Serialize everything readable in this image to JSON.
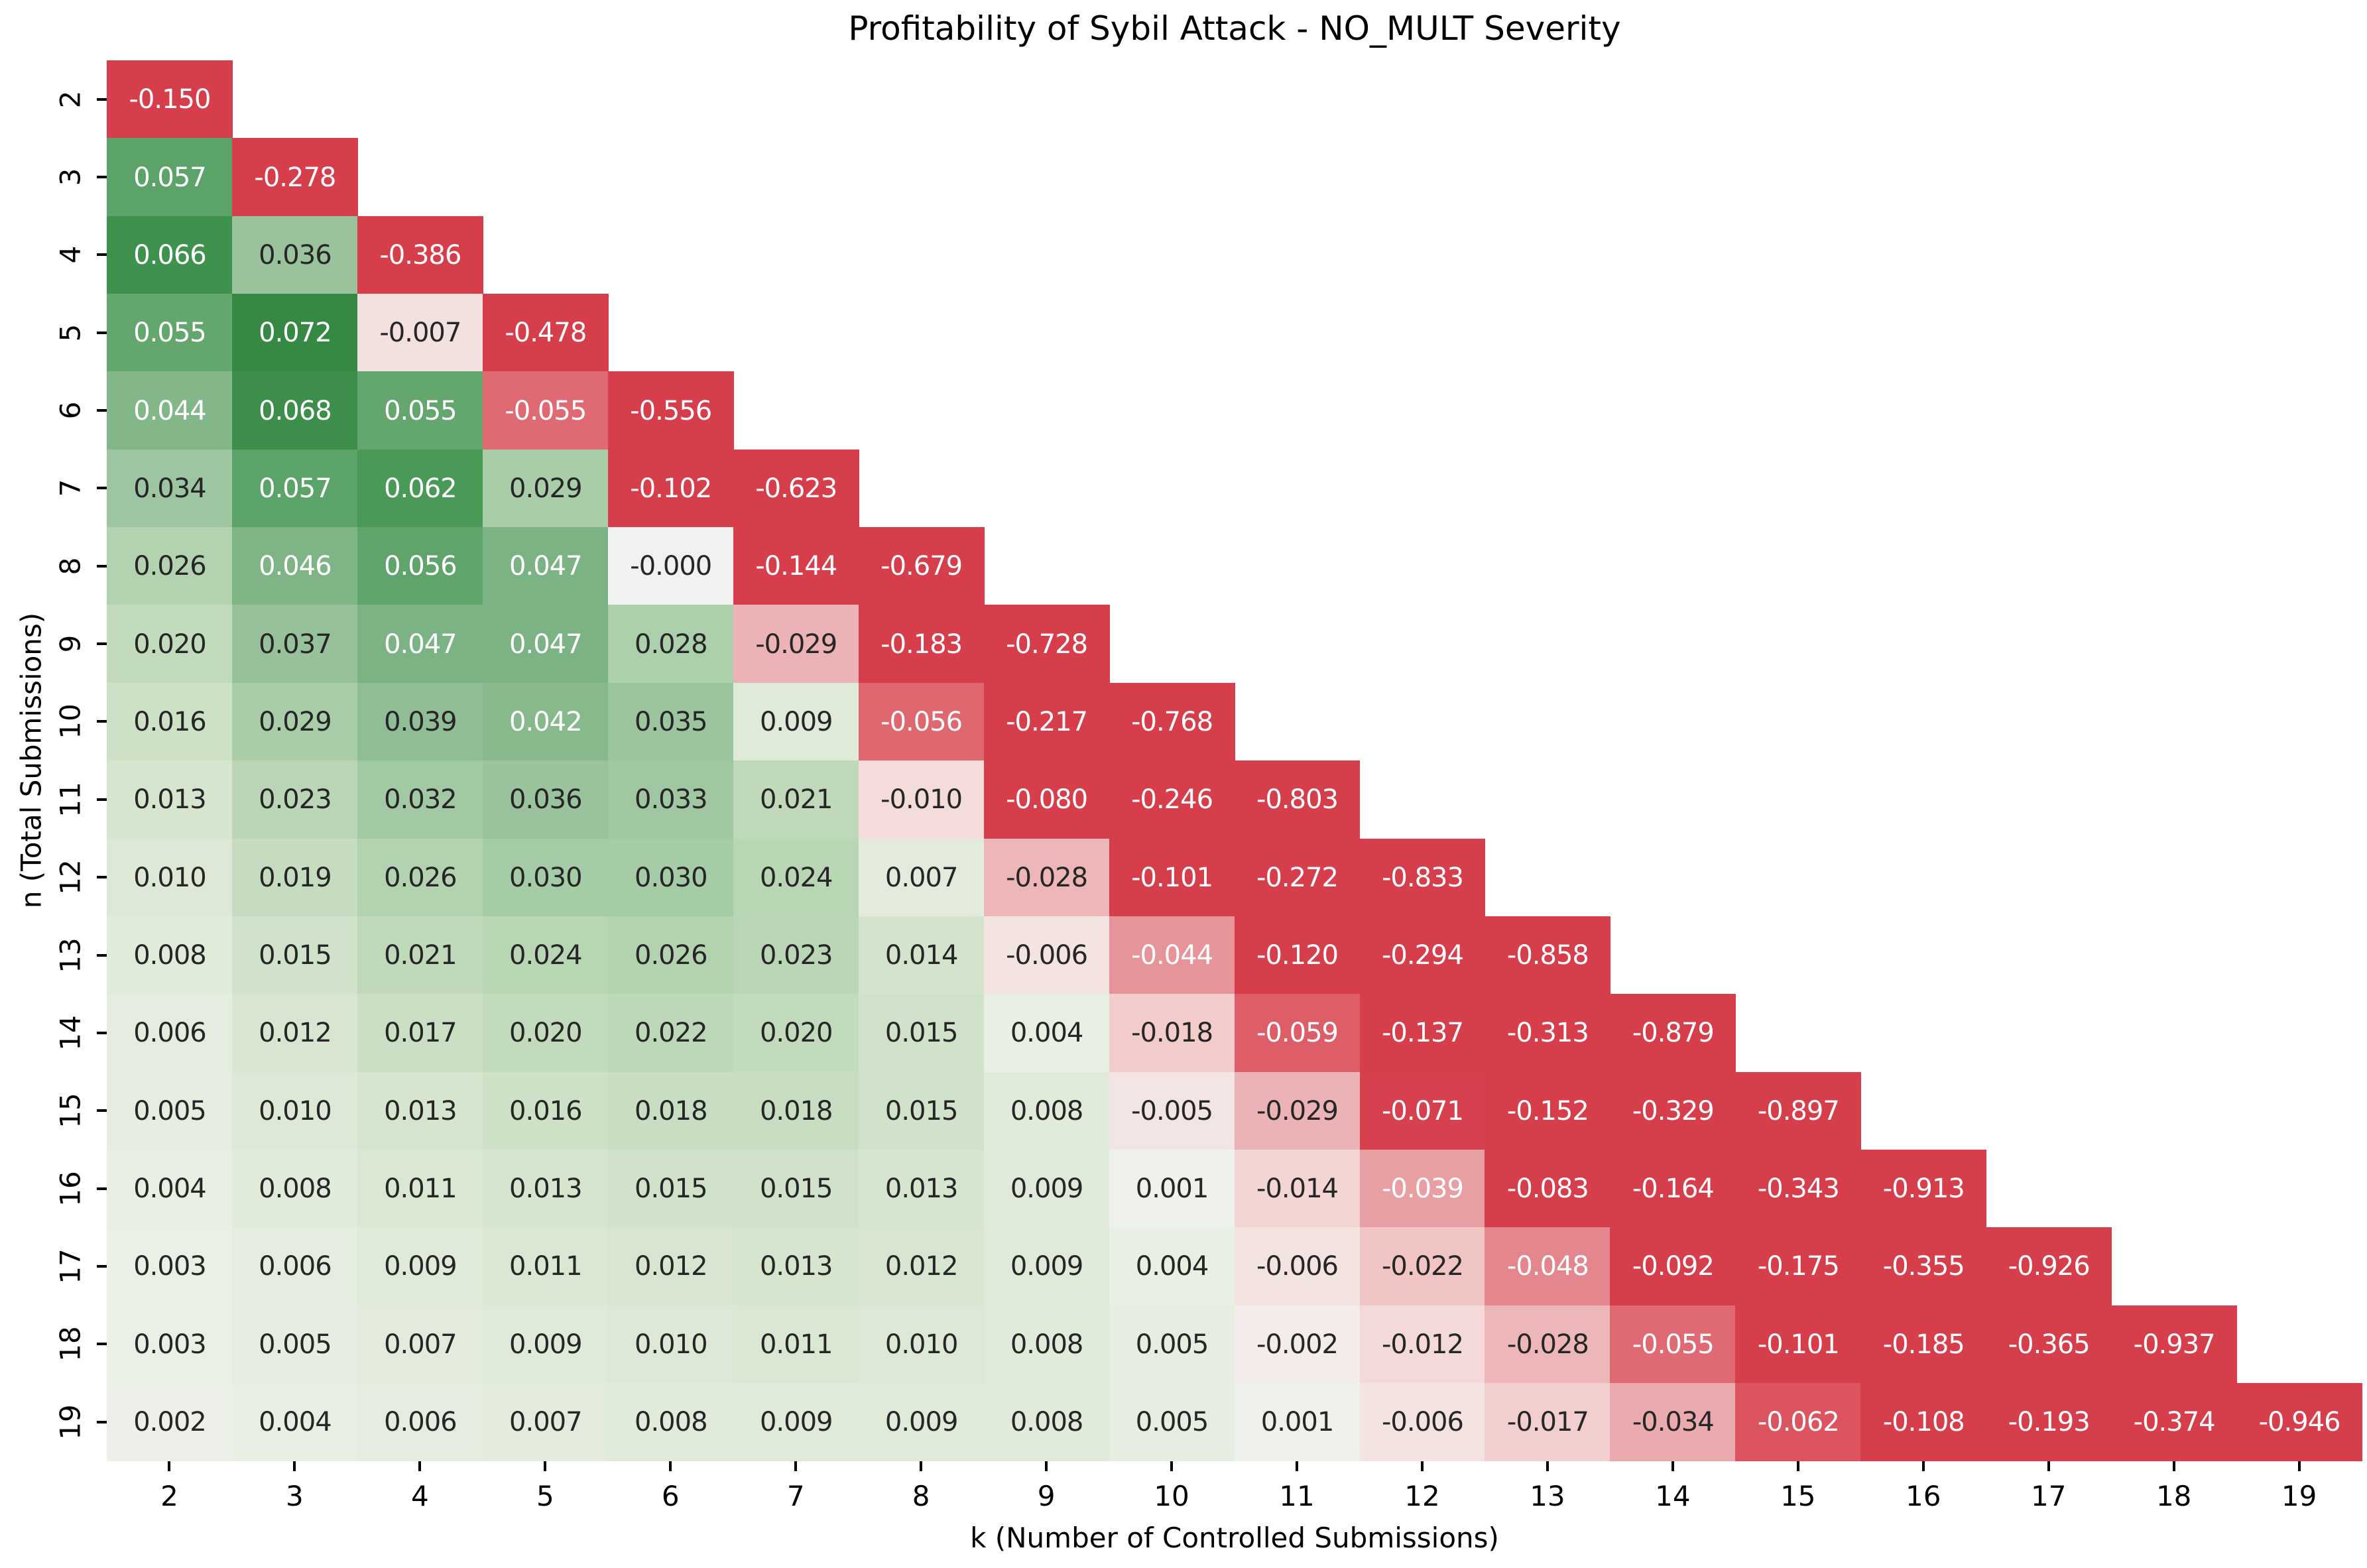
{
  "chart_data": {
    "type": "heatmap",
    "title": "Profitability of Sybil Attack - NO_MULT Severity",
    "xlabel": "k (Number of Controlled Submissions)",
    "ylabel": "n (Total Submissions)",
    "x_ticks": [
      "2",
      "3",
      "4",
      "5",
      "6",
      "7",
      "8",
      "9",
      "10",
      "11",
      "12",
      "13",
      "14",
      "15",
      "16",
      "17",
      "18",
      "19"
    ],
    "y_ticks": [
      "2",
      "3",
      "4",
      "5",
      "6",
      "7",
      "8",
      "9",
      "10",
      "11",
      "12",
      "13",
      "14",
      "15",
      "16",
      "17",
      "18",
      "19"
    ],
    "x_start": 2,
    "y_start": 2,
    "legend": "none",
    "grid": "off",
    "shape": "lower-triangular",
    "annotation_format": "3 decimals",
    "colors": {
      "background": "#ffffff",
      "strong_negative": "#d73e4c",
      "center": "#f1f1ef",
      "strong_positive": "#358943",
      "annot_dark_text": "#262626",
      "annot_light_text": "#ffffff"
    },
    "colormap_stops": [
      [
        -0.072,
        "#d73e4c"
      ],
      [
        -0.062,
        "#db5460"
      ],
      [
        -0.055,
        "#df6a73"
      ],
      [
        -0.048,
        "#e3868e"
      ],
      [
        -0.044,
        "#e69399"
      ],
      [
        -0.039,
        "#e89fa3"
      ],
      [
        -0.034,
        "#eaaaae"
      ],
      [
        -0.029,
        "#ecb3b6"
      ],
      [
        -0.022,
        "#f0c5c4"
      ],
      [
        -0.017,
        "#f2cfce"
      ],
      [
        -0.012,
        "#f3d9d7"
      ],
      [
        -0.007,
        "#f3e1df"
      ],
      [
        -0.002,
        "#f4ecea"
      ],
      [
        0.0,
        "#f1f1ef"
      ],
      [
        0.004,
        "#e8efe3"
      ],
      [
        0.009,
        "#dfead8"
      ],
      [
        0.015,
        "#d0e2c9"
      ],
      [
        0.021,
        "#c0d9bb"
      ],
      [
        0.026,
        "#b2d2b0"
      ],
      [
        0.03,
        "#a6cba7"
      ],
      [
        0.035,
        "#9cc49f"
      ],
      [
        0.039,
        "#90bd95"
      ],
      [
        0.042,
        "#87b98d"
      ],
      [
        0.047,
        "#7cb384"
      ],
      [
        0.052,
        "#6eab77"
      ],
      [
        0.057,
        "#5ba368"
      ],
      [
        0.062,
        "#4a9957"
      ],
      [
        0.066,
        "#3f914e"
      ],
      [
        0.072,
        "#358943"
      ]
    ],
    "rows": [
      {
        "n": "2",
        "values": [
          "-0.150"
        ]
      },
      {
        "n": "3",
        "values": [
          "0.057",
          "-0.278"
        ]
      },
      {
        "n": "4",
        "values": [
          "0.066",
          "0.036",
          "-0.386"
        ]
      },
      {
        "n": "5",
        "values": [
          "0.055",
          "0.072",
          "-0.007",
          "-0.478"
        ]
      },
      {
        "n": "6",
        "values": [
          "0.044",
          "0.068",
          "0.055",
          "-0.055",
          "-0.556"
        ]
      },
      {
        "n": "7",
        "values": [
          "0.034",
          "0.057",
          "0.062",
          "0.029",
          "-0.102",
          "-0.623"
        ]
      },
      {
        "n": "8",
        "values": [
          "0.026",
          "0.046",
          "0.056",
          "0.047",
          "-0.000",
          "-0.144",
          "-0.679"
        ]
      },
      {
        "n": "9",
        "values": [
          "0.020",
          "0.037",
          "0.047",
          "0.047",
          "0.028",
          "-0.029",
          "-0.183",
          "-0.728"
        ]
      },
      {
        "n": "10",
        "values": [
          "0.016",
          "0.029",
          "0.039",
          "0.042",
          "0.035",
          "0.009",
          "-0.056",
          "-0.217",
          "-0.768"
        ]
      },
      {
        "n": "11",
        "values": [
          "0.013",
          "0.023",
          "0.032",
          "0.036",
          "0.033",
          "0.021",
          "-0.010",
          "-0.080",
          "-0.246",
          "-0.803"
        ]
      },
      {
        "n": "12",
        "values": [
          "0.010",
          "0.019",
          "0.026",
          "0.030",
          "0.030",
          "0.024",
          "0.007",
          "-0.028",
          "-0.101",
          "-0.272",
          "-0.833"
        ]
      },
      {
        "n": "13",
        "values": [
          "0.008",
          "0.015",
          "0.021",
          "0.024",
          "0.026",
          "0.023",
          "0.014",
          "-0.006",
          "-0.044",
          "-0.120",
          "-0.294",
          "-0.858"
        ]
      },
      {
        "n": "14",
        "values": [
          "0.006",
          "0.012",
          "0.017",
          "0.020",
          "0.022",
          "0.020",
          "0.015",
          "0.004",
          "-0.018",
          "-0.059",
          "-0.137",
          "-0.313",
          "-0.879"
        ]
      },
      {
        "n": "15",
        "values": [
          "0.005",
          "0.010",
          "0.013",
          "0.016",
          "0.018",
          "0.018",
          "0.015",
          "0.008",
          "-0.005",
          "-0.029",
          "-0.071",
          "-0.152",
          "-0.329",
          "-0.897"
        ]
      },
      {
        "n": "16",
        "values": [
          "0.004",
          "0.008",
          "0.011",
          "0.013",
          "0.015",
          "0.015",
          "0.013",
          "0.009",
          "0.001",
          "-0.014",
          "-0.039",
          "-0.083",
          "-0.164",
          "-0.343",
          "-0.913"
        ]
      },
      {
        "n": "17",
        "values": [
          "0.003",
          "0.006",
          "0.009",
          "0.011",
          "0.012",
          "0.013",
          "0.012",
          "0.009",
          "0.004",
          "-0.006",
          "-0.022",
          "-0.048",
          "-0.092",
          "-0.175",
          "-0.355",
          "-0.926"
        ]
      },
      {
        "n": "18",
        "values": [
          "0.003",
          "0.005",
          "0.007",
          "0.009",
          "0.010",
          "0.011",
          "0.010",
          "0.008",
          "0.005",
          "-0.002",
          "-0.012",
          "-0.028",
          "-0.055",
          "-0.101",
          "-0.185",
          "-0.365",
          "-0.937"
        ]
      },
      {
        "n": "19",
        "values": [
          "0.002",
          "0.004",
          "0.006",
          "0.007",
          "0.008",
          "0.009",
          "0.009",
          "0.008",
          "0.005",
          "0.001",
          "-0.006",
          "-0.017",
          "-0.034",
          "-0.062",
          "-0.108",
          "-0.193",
          "-0.374",
          "-0.946"
        ]
      }
    ]
  }
}
